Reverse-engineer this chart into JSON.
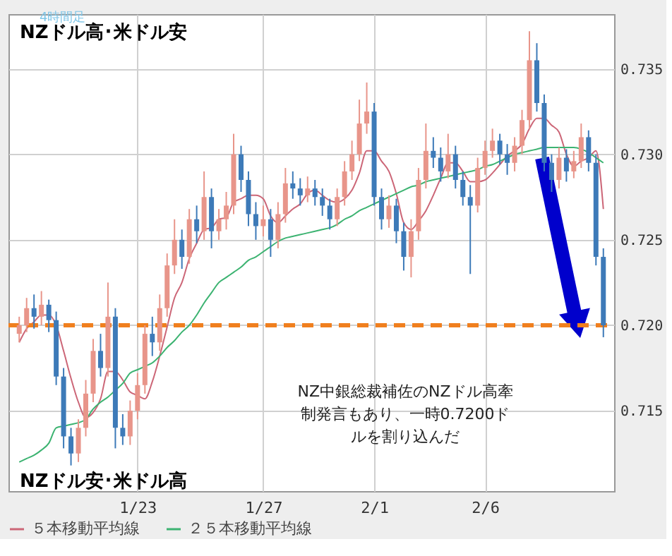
{
  "chart_data": {
    "type": "candlestick",
    "categories": [
      null,
      null,
      null,
      null,
      null,
      null,
      null,
      null,
      null,
      null,
      null,
      null,
      null,
      null,
      null,
      null,
      "1/23",
      null,
      null,
      null,
      null,
      null,
      null,
      null,
      null,
      null,
      null,
      null,
      null,
      null,
      null,
      null,
      null,
      "1/27",
      null,
      null,
      null,
      null,
      null,
      null,
      null,
      null,
      null,
      null,
      null,
      null,
      null,
      null,
      "2/1",
      null,
      null,
      null,
      null,
      null,
      null,
      null,
      null,
      null,
      null,
      null,
      null,
      null,
      null,
      "2/6",
      null,
      null,
      null,
      null,
      null,
      null,
      null,
      null,
      null,
      null,
      null,
      null,
      null,
      null,
      null,
      null
    ],
    "ohlc": [
      [
        0.7195,
        0.7205,
        0.719,
        0.72
      ],
      [
        0.72,
        0.7216,
        0.7196,
        0.721
      ],
      [
        0.721,
        0.7218,
        0.7198,
        0.7205
      ],
      [
        0.7205,
        0.722,
        0.72,
        0.7212
      ],
      [
        0.7212,
        0.7215,
        0.7196,
        0.7203
      ],
      [
        0.7203,
        0.7208,
        0.7165,
        0.717
      ],
      [
        0.717,
        0.7175,
        0.7128,
        0.7135
      ],
      [
        0.7135,
        0.714,
        0.7118,
        0.7125
      ],
      [
        0.7125,
        0.7145,
        0.712,
        0.714
      ],
      [
        0.714,
        0.7168,
        0.7135,
        0.716
      ],
      [
        0.716,
        0.7192,
        0.7155,
        0.7185
      ],
      [
        0.7185,
        0.7195,
        0.717,
        0.7175
      ],
      [
        0.7175,
        0.7225,
        0.717,
        0.7205
      ],
      [
        0.7205,
        0.721,
        0.7128,
        0.714
      ],
      [
        0.714,
        0.7148,
        0.713,
        0.7135
      ],
      [
        0.7135,
        0.7156,
        0.713,
        0.715
      ],
      [
        0.715,
        0.7172,
        0.7145,
        0.7165
      ],
      [
        0.7165,
        0.72,
        0.716,
        0.7195
      ],
      [
        0.7195,
        0.7205,
        0.7182,
        0.719
      ],
      [
        0.719,
        0.7218,
        0.7185,
        0.721
      ],
      [
        0.721,
        0.7242,
        0.7205,
        0.7235
      ],
      [
        0.7235,
        0.7262,
        0.723,
        0.725
      ],
      [
        0.725,
        0.7256,
        0.7233,
        0.724
      ],
      [
        0.724,
        0.7268,
        0.7236,
        0.7262
      ],
      [
        0.7262,
        0.727,
        0.7248,
        0.7255
      ],
      [
        0.7255,
        0.729,
        0.725,
        0.7275
      ],
      [
        0.7275,
        0.728,
        0.7245,
        0.7255
      ],
      [
        0.7255,
        0.7268,
        0.725,
        0.7262
      ],
      [
        0.7262,
        0.7278,
        0.7256,
        0.727
      ],
      [
        0.727,
        0.7312,
        0.7265,
        0.73
      ],
      [
        0.73,
        0.7305,
        0.7278,
        0.7285
      ],
      [
        0.7285,
        0.729,
        0.7258,
        0.7265
      ],
      [
        0.7265,
        0.7272,
        0.725,
        0.7258
      ],
      [
        0.7258,
        0.727,
        0.7252,
        0.7262
      ],
      [
        0.7262,
        0.7268,
        0.724,
        0.725
      ],
      [
        0.725,
        0.7272,
        0.7245,
        0.7265
      ],
      [
        0.7265,
        0.7292,
        0.726,
        0.7283
      ],
      [
        0.7283,
        0.729,
        0.7274,
        0.728
      ],
      [
        0.728,
        0.7286,
        0.727,
        0.7276
      ],
      [
        0.7276,
        0.7287,
        0.7272,
        0.728
      ],
      [
        0.728,
        0.7285,
        0.727,
        0.7275
      ],
      [
        0.7275,
        0.728,
        0.7264,
        0.727
      ],
      [
        0.727,
        0.7274,
        0.7256,
        0.7262
      ],
      [
        0.7262,
        0.728,
        0.7258,
        0.7275
      ],
      [
        0.7275,
        0.7296,
        0.727,
        0.729
      ],
      [
        0.729,
        0.7308,
        0.7285,
        0.73
      ],
      [
        0.73,
        0.7332,
        0.7296,
        0.7318
      ],
      [
        0.7318,
        0.7342,
        0.7312,
        0.7325
      ],
      [
        0.7325,
        0.733,
        0.727,
        0.7275
      ],
      [
        0.7275,
        0.728,
        0.7256,
        0.7262
      ],
      [
        0.7262,
        0.7276,
        0.7257,
        0.727
      ],
      [
        0.727,
        0.7274,
        0.7248,
        0.7255
      ],
      [
        0.7255,
        0.726,
        0.7232,
        0.724
      ],
      [
        0.724,
        0.7262,
        0.7228,
        0.7255
      ],
      [
        0.7255,
        0.7292,
        0.725,
        0.7285
      ],
      [
        0.7285,
        0.7318,
        0.728,
        0.7302
      ],
      [
        0.7302,
        0.731,
        0.7292,
        0.7298
      ],
      [
        0.7298,
        0.7304,
        0.7284,
        0.729
      ],
      [
        0.729,
        0.7312,
        0.7286,
        0.73
      ],
      [
        0.73,
        0.7305,
        0.728,
        0.7285
      ],
      [
        0.7285,
        0.729,
        0.727,
        0.7275
      ],
      [
        0.7275,
        0.7282,
        0.723,
        0.727
      ],
      [
        0.727,
        0.7298,
        0.7266,
        0.7292
      ],
      [
        0.7292,
        0.7308,
        0.7288,
        0.7302
      ],
      [
        0.7302,
        0.7315,
        0.7298,
        0.7308
      ],
      [
        0.7308,
        0.7312,
        0.7294,
        0.73
      ],
      [
        0.73,
        0.7306,
        0.7288,
        0.7295
      ],
      [
        0.7295,
        0.731,
        0.729,
        0.7305
      ],
      [
        0.7305,
        0.7326,
        0.73,
        0.732
      ],
      [
        0.732,
        0.7372,
        0.7315,
        0.7355
      ],
      [
        0.7355,
        0.7365,
        0.7325,
        0.733
      ],
      [
        0.733,
        0.7335,
        0.729,
        0.7295
      ],
      [
        0.7295,
        0.73,
        0.7278,
        0.7285
      ],
      [
        0.7285,
        0.7304,
        0.728,
        0.7298
      ],
      [
        0.7298,
        0.7303,
        0.7284,
        0.729
      ],
      [
        0.729,
        0.7302,
        0.7286,
        0.7296
      ],
      [
        0.7296,
        0.7318,
        0.7292,
        0.731
      ],
      [
        0.731,
        0.7314,
        0.729,
        0.7295
      ],
      [
        0.7295,
        0.73,
        0.7235,
        0.724
      ],
      [
        0.724,
        0.7245,
        0.7193,
        0.72
      ]
    ],
    "colors": [
      "#e8958a",
      "#e8958a",
      "#3d7ab8",
      "#e8958a",
      "#3d7ab8",
      "#3d7ab8",
      "#3d7ab8",
      "#3d7ab8",
      "#e8958a",
      "#e8958a",
      "#e8958a",
      "#3d7ab8",
      "#e8958a",
      "#3d7ab8",
      "#3d7ab8",
      "#e8958a",
      "#e8958a",
      "#e8958a",
      "#3d7ab8",
      "#e8958a",
      "#e8958a",
      "#e8958a",
      "#3d7ab8",
      "#e8958a",
      "#3d7ab8",
      "#e8958a",
      "#3d7ab8",
      "#e8958a",
      "#e8958a",
      "#e8958a",
      "#3d7ab8",
      "#3d7ab8",
      "#3d7ab8",
      "#e8958a",
      "#3d7ab8",
      "#e8958a",
      "#e8958a",
      "#3d7ab8",
      "#3d7ab8",
      "#e8958a",
      "#3d7ab8",
      "#3d7ab8",
      "#3d7ab8",
      "#e8958a",
      "#e8958a",
      "#e8958a",
      "#e8958a",
      "#e8958a",
      "#3d7ab8",
      "#3d7ab8",
      "#e8958a",
      "#3d7ab8",
      "#3d7ab8",
      "#e8958a",
      "#e8958a",
      "#e8958a",
      "#3d7ab8",
      "#3d7ab8",
      "#e8958a",
      "#3d7ab8",
      "#3d7ab8",
      "#3d7ab8",
      "#e8958a",
      "#e8958a",
      "#e8958a",
      "#3d7ab8",
      "#3d7ab8",
      "#e8958a",
      "#e8958a",
      "#e8958a",
      "#3d7ab8",
      "#3d7ab8",
      "#3d7ab8",
      "#e8958a",
      "#3d7ab8",
      "#e8958a",
      "#e8958a",
      "#3d7ab8",
      "#3d7ab8",
      "#3d7ab8"
    ],
    "series": [
      {
        "name": "５本移動平均線",
        "type": "line",
        "color": "#cc6677",
        "values": [
          0.719,
          0.7198,
          0.7202,
          0.7206,
          0.7206,
          0.72,
          0.7185,
          0.7169,
          0.7155,
          0.7146,
          0.7149,
          0.7157,
          0.7173,
          0.7173,
          0.7168,
          0.7161,
          0.7159,
          0.7157,
          0.7167,
          0.7182,
          0.7199,
          0.7216,
          0.7225,
          0.7239,
          0.7248,
          0.7256,
          0.7257,
          0.7262,
          0.7263,
          0.7272,
          0.7274,
          0.7276,
          0.7276,
          0.7274,
          0.7264,
          0.726,
          0.7264,
          0.7268,
          0.7271,
          0.7277,
          0.7279,
          0.7276,
          0.7273,
          0.7272,
          0.7274,
          0.7279,
          0.7289,
          0.7302,
          0.7302,
          0.7296,
          0.729,
          0.7277,
          0.726,
          0.7256,
          0.7261,
          0.7267,
          0.7276,
          0.7286,
          0.7295,
          0.7295,
          0.729,
          0.7284,
          0.7284,
          0.7285,
          0.7289,
          0.7294,
          0.7299,
          0.7302,
          0.7306,
          0.7315,
          0.7321,
          0.7321,
          0.7317,
          0.7313,
          0.73,
          0.7293,
          0.7296,
          0.7298,
          0.7302,
          0.7268
        ]
      },
      {
        "name": "２５本移動平均線",
        "type": "line",
        "color": "#3cb371",
        "values": [
          0.712,
          0.7122,
          0.7124,
          0.7127,
          0.7131,
          0.714,
          0.7141,
          0.7142,
          0.7143,
          0.7145,
          0.7151,
          0.7155,
          0.7158,
          0.7162,
          0.7166,
          0.7172,
          0.7174,
          0.7176,
          0.7178,
          0.7182,
          0.7187,
          0.7191,
          0.7196,
          0.72,
          0.7206,
          0.7213,
          0.7219,
          0.7225,
          0.7228,
          0.7231,
          0.7234,
          0.7238,
          0.724,
          0.7243,
          0.7246,
          0.7249,
          0.7251,
          0.7252,
          0.7253,
          0.7254,
          0.7255,
          0.7256,
          0.7257,
          0.7259,
          0.7262,
          0.7264,
          0.7267,
          0.7269,
          0.7271,
          0.7273,
          0.7275,
          0.7277,
          0.7279,
          0.7281,
          0.7282,
          0.7284,
          0.7285,
          0.7286,
          0.7287,
          0.7288,
          0.7289,
          0.729,
          0.7291,
          0.7293,
          0.7294,
          0.7296,
          0.7298,
          0.73,
          0.7301,
          0.7302,
          0.7303,
          0.7304,
          0.7304,
          0.7304,
          0.7304,
          0.7304,
          0.7303,
          0.7301,
          0.7298,
          0.7295
        ]
      }
    ],
    "ylim": [
      0.7103,
      0.7382
    ],
    "yticks": [
      0.715,
      {
        "value": 0.72,
        "label": "0.720"
      },
      0.725,
      {
        "value": 0.73,
        "label": "0.730"
      },
      0.735
    ],
    "ref_lines": [
      {
        "axis": "y",
        "value": 0.72,
        "color": "#f07f1e",
        "line_style": "dashed"
      }
    ],
    "annotations": [
      "4時間足",
      "NZドル高･米ドル安",
      "NZドル安･米ドル高",
      "NZ中銀総裁補佐のNZドル高牽制発言もあり、一時0.7200ドルを割り込んだ"
    ],
    "grid": true,
    "legend": "bottom"
  }
}
